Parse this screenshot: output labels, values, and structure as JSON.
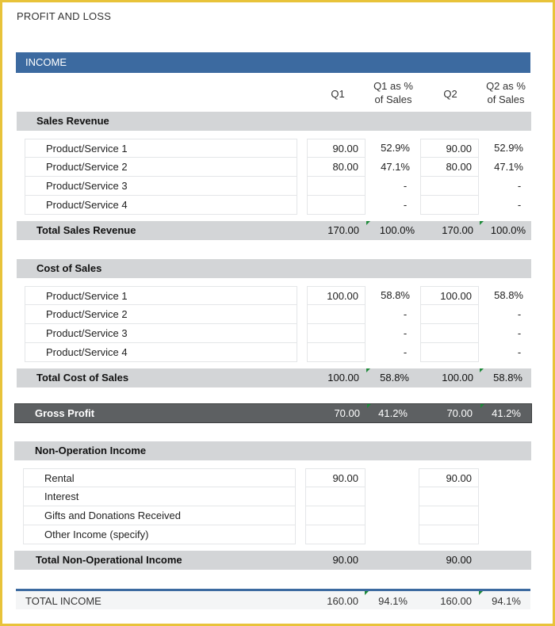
{
  "title": "PROFIT AND LOSS",
  "income_header": "INCOME",
  "columns": {
    "q1": "Q1",
    "q1_pct_line1": "Q1 as %",
    "q1_pct_line2": "of Sales",
    "q2": "Q2",
    "q2_pct_line1": "Q2 as %",
    "q2_pct_line2": "of Sales"
  },
  "sales_revenue": {
    "label": "Sales Revenue",
    "rows": [
      {
        "name": "Product/Service 1",
        "q1": "90.00",
        "q1_pct": "52.9%",
        "q2": "90.00",
        "q2_pct": "52.9%"
      },
      {
        "name": "Product/Service 2",
        "q1": "80.00",
        "q1_pct": "47.1%",
        "q2": "80.00",
        "q2_pct": "47.1%"
      },
      {
        "name": "Product/Service 3",
        "q1": "",
        "q1_pct": "-",
        "q2": "",
        "q2_pct": "-"
      },
      {
        "name": "Product/Service 4",
        "q1": "",
        "q1_pct": "-",
        "q2": "",
        "q2_pct": "-"
      }
    ],
    "total": {
      "label": "Total Sales Revenue",
      "q1": "170.00",
      "q1_pct": "100.0%",
      "q2": "170.00",
      "q2_pct": "100.0%"
    }
  },
  "cost_of_sales": {
    "label": "Cost of Sales",
    "rows": [
      {
        "name": "Product/Service 1",
        "q1": "100.00",
        "q1_pct": "58.8%",
        "q2": "100.00",
        "q2_pct": "58.8%"
      },
      {
        "name": "Product/Service 2",
        "q1": "",
        "q1_pct": "-",
        "q2": "",
        "q2_pct": "-"
      },
      {
        "name": "Product/Service 3",
        "q1": "",
        "q1_pct": "-",
        "q2": "",
        "q2_pct": "-"
      },
      {
        "name": "Product/Service 4",
        "q1": "",
        "q1_pct": "-",
        "q2": "",
        "q2_pct": "-"
      }
    ],
    "total": {
      "label": "Total Cost of Sales",
      "q1": "100.00",
      "q1_pct": "58.8%",
      "q2": "100.00",
      "q2_pct": "58.8%"
    }
  },
  "gross_profit": {
    "label": "Gross Profit",
    "q1": "70.00",
    "q1_pct": "41.2%",
    "q2": "70.00",
    "q2_pct": "41.2%"
  },
  "non_operation_income": {
    "label": "Non-Operation Income",
    "rows": [
      {
        "name": "Rental",
        "q1": "90.00",
        "q2": "90.00"
      },
      {
        "name": "Interest",
        "q1": "",
        "q2": ""
      },
      {
        "name": "Gifts and Donations Received",
        "q1": "",
        "q2": ""
      },
      {
        "name": "Other Income (specify)",
        "q1": "",
        "q2": ""
      }
    ],
    "total": {
      "label": "Total Non-Operational Income",
      "q1": "90.00",
      "q2": "90.00"
    }
  },
  "total_income": {
    "label": "TOTAL INCOME",
    "q1": "160.00",
    "q1_pct": "94.1%",
    "q2": "160.00",
    "q2_pct": "94.1%"
  },
  "colors": {
    "accent": "#3c6aa0",
    "section_bg": "#d3d5d7",
    "gross_profit_bg": "#5d6062",
    "frame": "#e8c33a",
    "marker": "#1e8a3a"
  }
}
